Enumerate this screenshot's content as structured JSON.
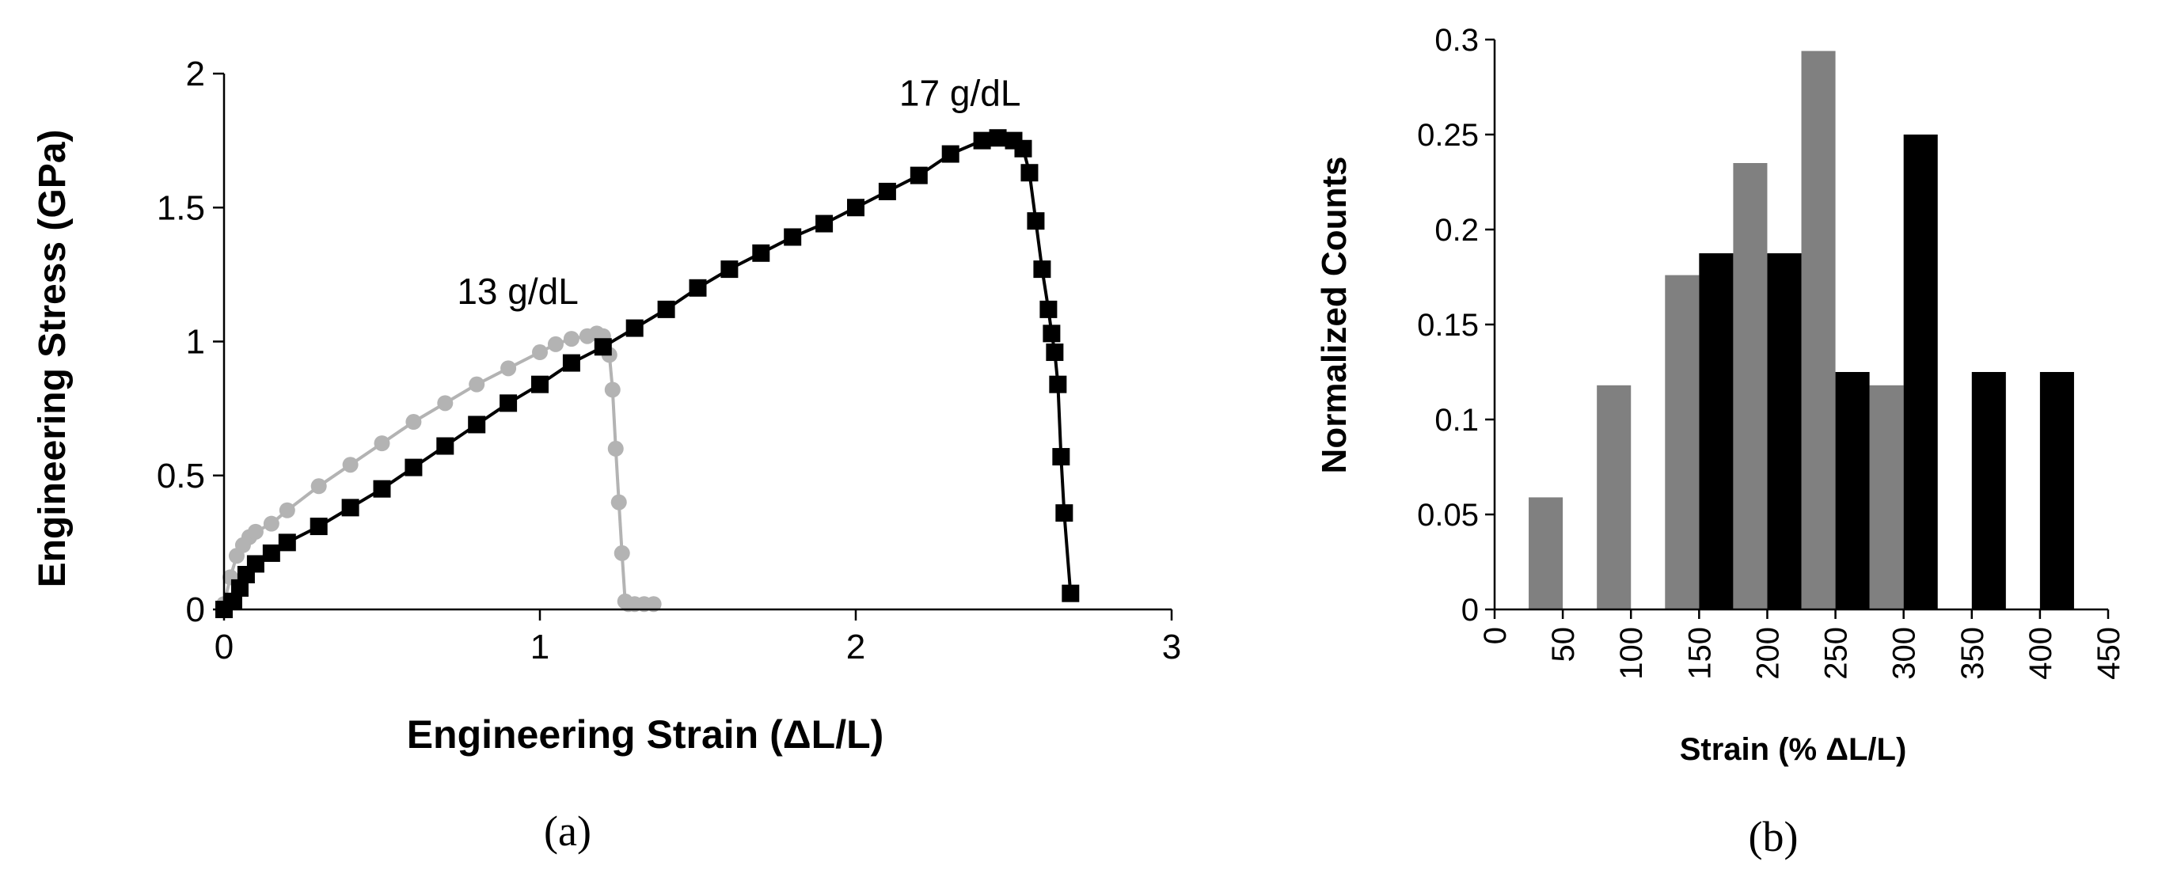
{
  "chart_data": [
    {
      "type": "scatter",
      "caption": "(a)",
      "xlabel": "Engineering Strain (ΔL/L)",
      "ylabel": "Engineering Stress (GPa)",
      "xlim": [
        0,
        3
      ],
      "ylim": [
        0,
        2
      ],
      "xticks": [
        "0",
        "1",
        "2",
        "3"
      ],
      "yticks": [
        "0",
        "0.5",
        "1",
        "1.5",
        "2"
      ],
      "grid": false,
      "legend": "none",
      "annotations": [
        {
          "text": "17 g/dL",
          "x": 2.33,
          "y": 1.88
        },
        {
          "text": "13 g/dL",
          "x": 0.93,
          "y": 1.14
        }
      ],
      "series": [
        {
          "color": "#b3b3b3",
          "marker": "circle",
          "x": [
            0,
            0.02,
            0.04,
            0.06,
            0.08,
            0.1,
            0.15,
            0.2,
            0.3,
            0.4,
            0.5,
            0.6,
            0.7,
            0.8,
            0.9,
            1.0,
            1.05,
            1.1,
            1.15,
            1.18,
            1.2,
            1.22,
            1.23,
            1.24,
            1.25,
            1.26,
            1.27,
            1.28,
            1.3,
            1.33,
            1.36
          ],
          "y": [
            0.02,
            0.12,
            0.2,
            0.24,
            0.27,
            0.29,
            0.32,
            0.37,
            0.46,
            0.54,
            0.62,
            0.7,
            0.77,
            0.84,
            0.9,
            0.96,
            0.99,
            1.01,
            1.02,
            1.03,
            1.02,
            0.95,
            0.82,
            0.6,
            0.4,
            0.21,
            0.03,
            0.02,
            0.02,
            0.02,
            0.02
          ]
        },
        {
          "color": "#000000",
          "marker": "square",
          "x": [
            0,
            0.03,
            0.05,
            0.07,
            0.1,
            0.15,
            0.2,
            0.3,
            0.4,
            0.5,
            0.6,
            0.7,
            0.8,
            0.9,
            1.0,
            1.1,
            1.2,
            1.3,
            1.4,
            1.5,
            1.6,
            1.7,
            1.8,
            1.9,
            2.0,
            2.1,
            2.2,
            2.3,
            2.4,
            2.45,
            2.5,
            2.53,
            2.55,
            2.57,
            2.59,
            2.61,
            2.62,
            2.63,
            2.64,
            2.65,
            2.66,
            2.68
          ],
          "y": [
            0.0,
            0.03,
            0.08,
            0.13,
            0.17,
            0.21,
            0.25,
            0.31,
            0.38,
            0.45,
            0.53,
            0.61,
            0.69,
            0.77,
            0.84,
            0.92,
            0.98,
            1.05,
            1.12,
            1.2,
            1.27,
            1.33,
            1.39,
            1.44,
            1.5,
            1.56,
            1.62,
            1.7,
            1.75,
            1.76,
            1.75,
            1.72,
            1.63,
            1.45,
            1.27,
            1.12,
            1.03,
            0.96,
            0.84,
            0.57,
            0.36,
            0.06
          ]
        }
      ]
    },
    {
      "type": "bar",
      "caption": "(b)",
      "xlabel": "Strain (% ΔL/L)",
      "ylabel": "Normalized Counts",
      "xlim": [
        0,
        450
      ],
      "ylim": [
        0,
        0.3
      ],
      "xticks": [
        "0",
        "50",
        "100",
        "150",
        "200",
        "250",
        "300",
        "350",
        "400",
        "450"
      ],
      "yticks": [
        "0",
        "0.05",
        "0.1",
        "0.15",
        "0.2",
        "0.25",
        "0.3"
      ],
      "grid": false,
      "legend": "none",
      "bin_width": 25,
      "series": [
        {
          "color": "#808080",
          "bin_start": [
            25,
            75,
            125,
            175,
            225,
            275
          ],
          "values": [
            0.059,
            0.118,
            0.176,
            0.235,
            0.294,
            0.118
          ]
        },
        {
          "color": "#000000",
          "bin_start": [
            150,
            200,
            250,
            300,
            350,
            400
          ],
          "values": [
            0.1875,
            0.1875,
            0.125,
            0.25,
            0.125,
            0.125
          ]
        }
      ]
    }
  ]
}
